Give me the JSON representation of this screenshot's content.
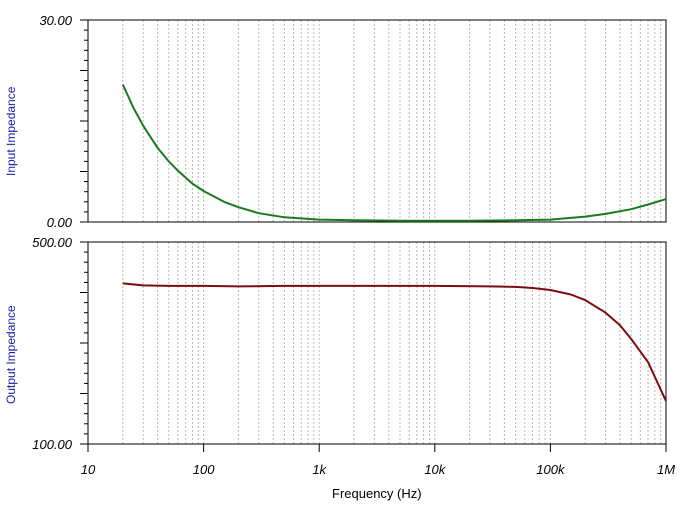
{
  "chart_data": [
    {
      "type": "line",
      "ylabel": "Input Impedance",
      "yticks": [
        "30.00",
        "0.00"
      ],
      "ylim": [
        0,
        30
      ],
      "xscale": "log",
      "xlim": [
        10,
        1000000
      ],
      "grid": "vertical-dotted",
      "series": [
        {
          "color": "#1b7a1b",
          "x": [
            20,
            25,
            30,
            40,
            50,
            60,
            80,
            100,
            150,
            200,
            300,
            500,
            1000,
            2000,
            5000,
            10000,
            20000,
            50000,
            100000,
            200000,
            300000,
            500000,
            700000,
            1000000
          ],
          "y": [
            20.4,
            16.8,
            14.3,
            11.0,
            9.0,
            7.6,
            5.7,
            4.6,
            3.0,
            2.2,
            1.3,
            0.7,
            0.35,
            0.25,
            0.2,
            0.2,
            0.2,
            0.25,
            0.35,
            0.8,
            1.2,
            1.9,
            2.6,
            3.4
          ]
        }
      ]
    },
    {
      "type": "line",
      "ylabel": "Output Impedance",
      "yticks": [
        "500.00",
        "100.00"
      ],
      "ylim": [
        100,
        500
      ],
      "xscale": "log",
      "xlim": [
        10,
        1000000
      ],
      "grid": "vertical-dotted",
      "xlabel": "Frequency (Hz)",
      "xticks": [
        "10",
        "100",
        "1k",
        "10k",
        "100k",
        "1M"
      ],
      "series": [
        {
          "color": "#7a0e0e",
          "x": [
            20,
            30,
            50,
            100,
            200,
            500,
            1000,
            5000,
            10000,
            30000,
            50000,
            70000,
            100000,
            150000,
            200000,
            300000,
            400000,
            500000,
            700000,
            1000000
          ],
          "y": [
            418,
            414,
            413,
            413,
            412,
            413,
            413,
            413,
            413,
            412,
            411,
            409,
            405,
            396,
            385,
            360,
            335,
            308,
            262,
            185
          ]
        }
      ]
    }
  ]
}
